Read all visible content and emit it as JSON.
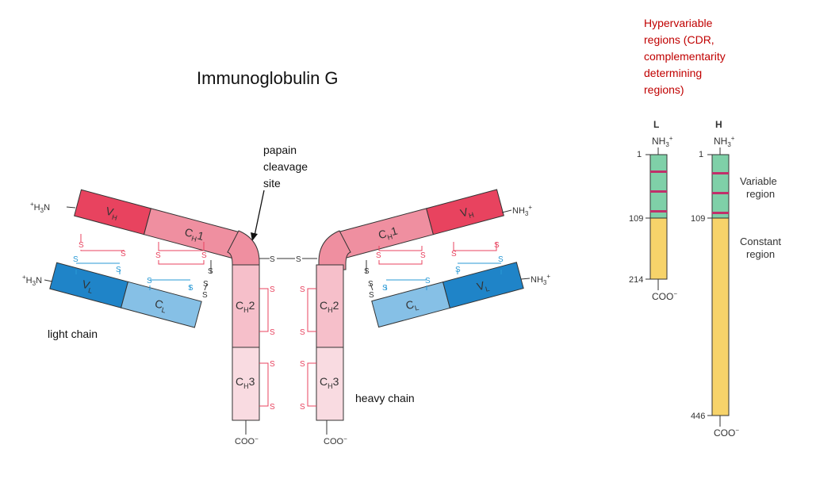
{
  "title": "Immunoglobulin G",
  "papain_label": [
    "papain",
    "cleavage",
    "site"
  ],
  "light_chain_label": "light chain",
  "heavy_chain_label": "heavy chain",
  "hypervariable_label": [
    "Hypervariable",
    "regions (CDR,",
    "complementarity",
    "determining",
    "regions)"
  ],
  "colors": {
    "vh": "#e8435f",
    "ch1": "#ef8fa0",
    "ch2": "#f6bfca",
    "ch3": "#f9dbe1",
    "vl": "#1f84c8",
    "cl": "#86c0e6",
    "ss_heavy": "#e8435f",
    "ss_light": "#2a9ad6",
    "variable": "#7fd0a8",
    "constant": "#f7d36a",
    "cdr": "#c0306a",
    "hyper_text": "#c00000"
  },
  "domains": {
    "vh": "V",
    "vh_sub": "H",
    "ch1": "C",
    "ch1_sub": "H",
    "ch1_num": "1",
    "ch2": "C",
    "ch2_sub": "H",
    "ch2_num": "2",
    "ch3": "C",
    "ch3_sub": "H",
    "ch3_num": "3",
    "vl": "V",
    "vl_sub": "L",
    "cl": "C",
    "cl_sub": "L"
  },
  "termini": {
    "h3n": "H",
    "h3n_prefix": "+",
    "h3n_sub": "3",
    "h3n_suffix": "N",
    "nh3": "NH",
    "nh3_sub": "3",
    "nh3_sup": "+",
    "coo": "COO",
    "coo_sup": "−"
  },
  "disulfide": "S",
  "bar_diagram": {
    "light_header": "L",
    "heavy_header": "H",
    "nh3": "NH",
    "nh3_sub": "3",
    "nh3_sup": "+",
    "coo": "COO",
    "coo_sup": "−",
    "light_start": "1",
    "light_boundary": "109",
    "light_end": "214",
    "heavy_start": "1",
    "heavy_boundary": "109",
    "heavy_end": "446",
    "variable_region": [
      "Variable",
      "region"
    ],
    "constant_region": [
      "Constant",
      "region"
    ]
  }
}
